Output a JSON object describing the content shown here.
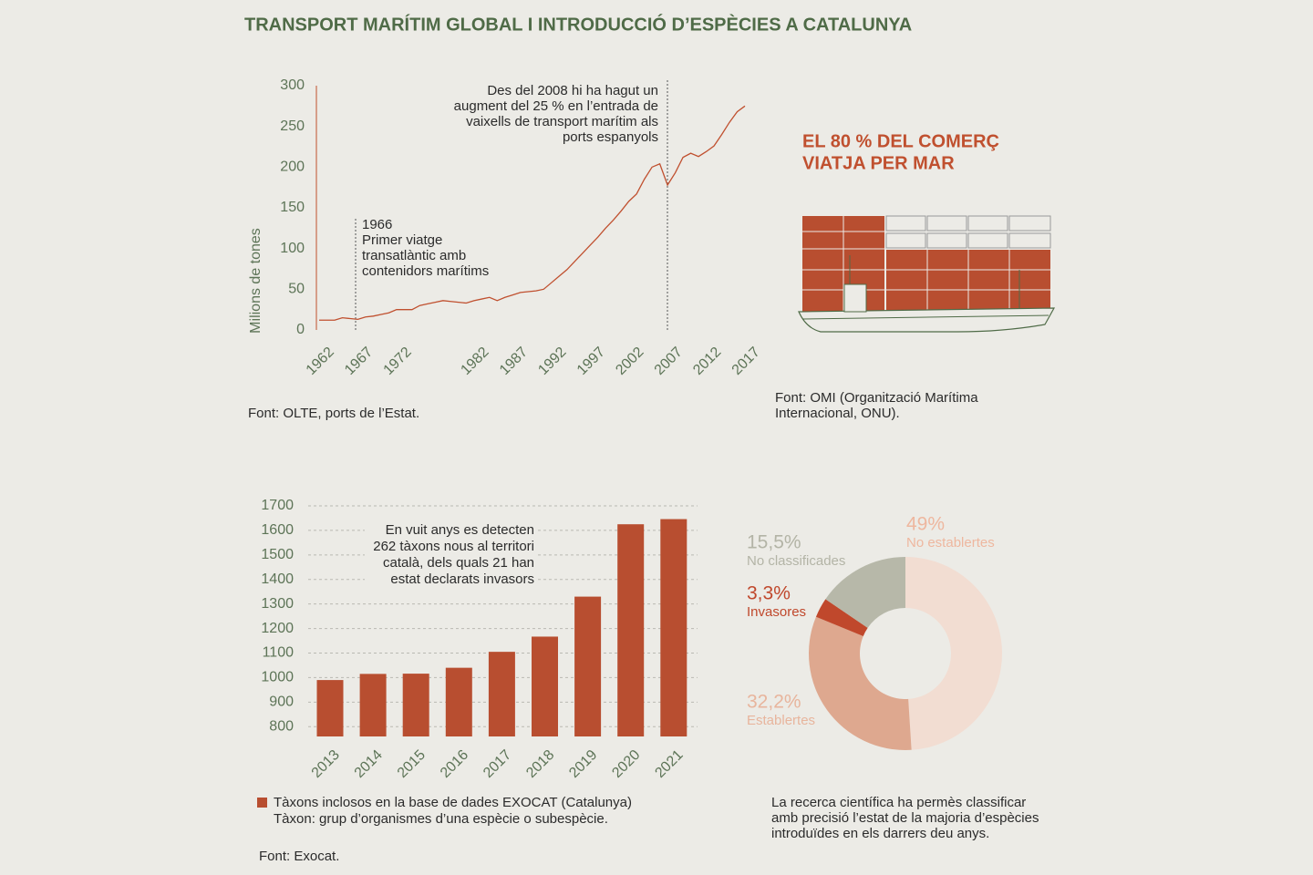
{
  "title": "TRANSPORT MARÍTIM GLOBAL I INTRODUCCIÓ D’ESPÈCIES A CATALUNYA",
  "trade_panel": {
    "heading_lines": [
      "EL 80 % DEL COMERÇ",
      "VIATJA PER MAR"
    ],
    "source_lines": [
      "Font: OMI (Organització Marítima",
      "Internacional, ONU)."
    ]
  },
  "chart_data": [
    {
      "type": "line",
      "y_label": "Milions de tones",
      "color": "#c0502f",
      "x": [
        1962,
        1963,
        1964,
        1965,
        1966,
        1967,
        1968,
        1969,
        1970,
        1971,
        1972,
        1973,
        1974,
        1975,
        1976,
        1977,
        1978,
        1979,
        1980,
        1981,
        1982,
        1983,
        1984,
        1985,
        1986,
        1987,
        1988,
        1989,
        1990,
        1991,
        1992,
        1993,
        1994,
        1995,
        1996,
        1997,
        1998,
        1999,
        2000,
        2001,
        2002,
        2003,
        2004,
        2005,
        2006,
        2007,
        2008,
        2009,
        2010,
        2011,
        2012,
        2013,
        2014,
        2015,
        2016,
        2017
      ],
      "values": [
        12,
        12,
        12,
        15,
        14,
        13,
        16,
        17,
        19,
        21,
        25,
        25,
        25,
        30,
        32,
        34,
        36,
        35,
        34,
        33,
        36,
        38,
        40,
        36,
        40,
        43,
        46,
        47,
        48,
        50,
        58,
        66,
        74,
        84,
        94,
        104,
        114,
        125,
        135,
        146,
        158,
        167,
        185,
        200,
        204,
        178,
        193,
        212,
        217,
        213,
        219,
        226,
        240,
        255,
        268,
        275
      ],
      "xlim": [
        1962,
        2017
      ],
      "xticks": [
        1962,
        1967,
        1972,
        1982,
        1987,
        1992,
        1997,
        2002,
        2007,
        2012,
        2017
      ],
      "ylim": [
        0,
        300
      ],
      "yticks": [
        0,
        50,
        100,
        150,
        200,
        250,
        300
      ],
      "annotations": [
        {
          "lines": [
            "1966",
            "Primer viatge",
            "transatlàntic amb",
            "contenidors marítims"
          ]
        },
        {
          "lines": [
            "Des del 2008 hi ha hagut un",
            "augment del 25 % en l’entrada de",
            "vaixells de transport marítim als",
            "ports espanyols"
          ]
        }
      ],
      "source": "Font: OLTE, ports de l’Estat."
    },
    {
      "type": "bar",
      "categories": [
        "2013",
        "2014",
        "2015",
        "2016",
        "2017",
        "2018",
        "2019",
        "2020",
        "2021"
      ],
      "series": [
        {
          "name": "Tàxons inclosos en la base de dades EXOCAT (Catalunya)",
          "color": "#b84e30",
          "values": [
            990,
            1015,
            1016,
            1040,
            1105,
            1167,
            1330,
            1625,
            1646
          ]
        }
      ],
      "ylim": [
        760,
        1700
      ],
      "yticks": [
        800,
        900,
        1000,
        1100,
        1200,
        1300,
        1400,
        1500,
        1600,
        1700
      ],
      "grid": true,
      "annotation_lines": [
        "En vuit anys es detecten",
        "262 tàxons nous al territori",
        "català, dels quals 21 han",
        "estat declarats invasors"
      ],
      "note": "Tàxon: grup d’organismes d’una espècie o subespècie.",
      "source": "Font: Exocat."
    },
    {
      "type": "pie",
      "categories": [
        "No establertes",
        "Establertes",
        "Invasores",
        "No classificades"
      ],
      "values": [
        49,
        32.2,
        3.3,
        15.5
      ],
      "value_labels": [
        "49%",
        "32,2%",
        "3,3%",
        "15,5%"
      ],
      "colors": [
        "#f2ddd2",
        "#dea88f",
        "#c0482c",
        "#b7b8a9"
      ],
      "label_colors": [
        "#eeb79f",
        "#e8b59d",
        "#c0482c",
        "#b3b4a6"
      ],
      "caption_lines": [
        "La recerca científica ha permès classificar",
        "amb precisió l’estat de la majoria d’espècies",
        "introduïdes en els darrers deu anys."
      ]
    }
  ]
}
